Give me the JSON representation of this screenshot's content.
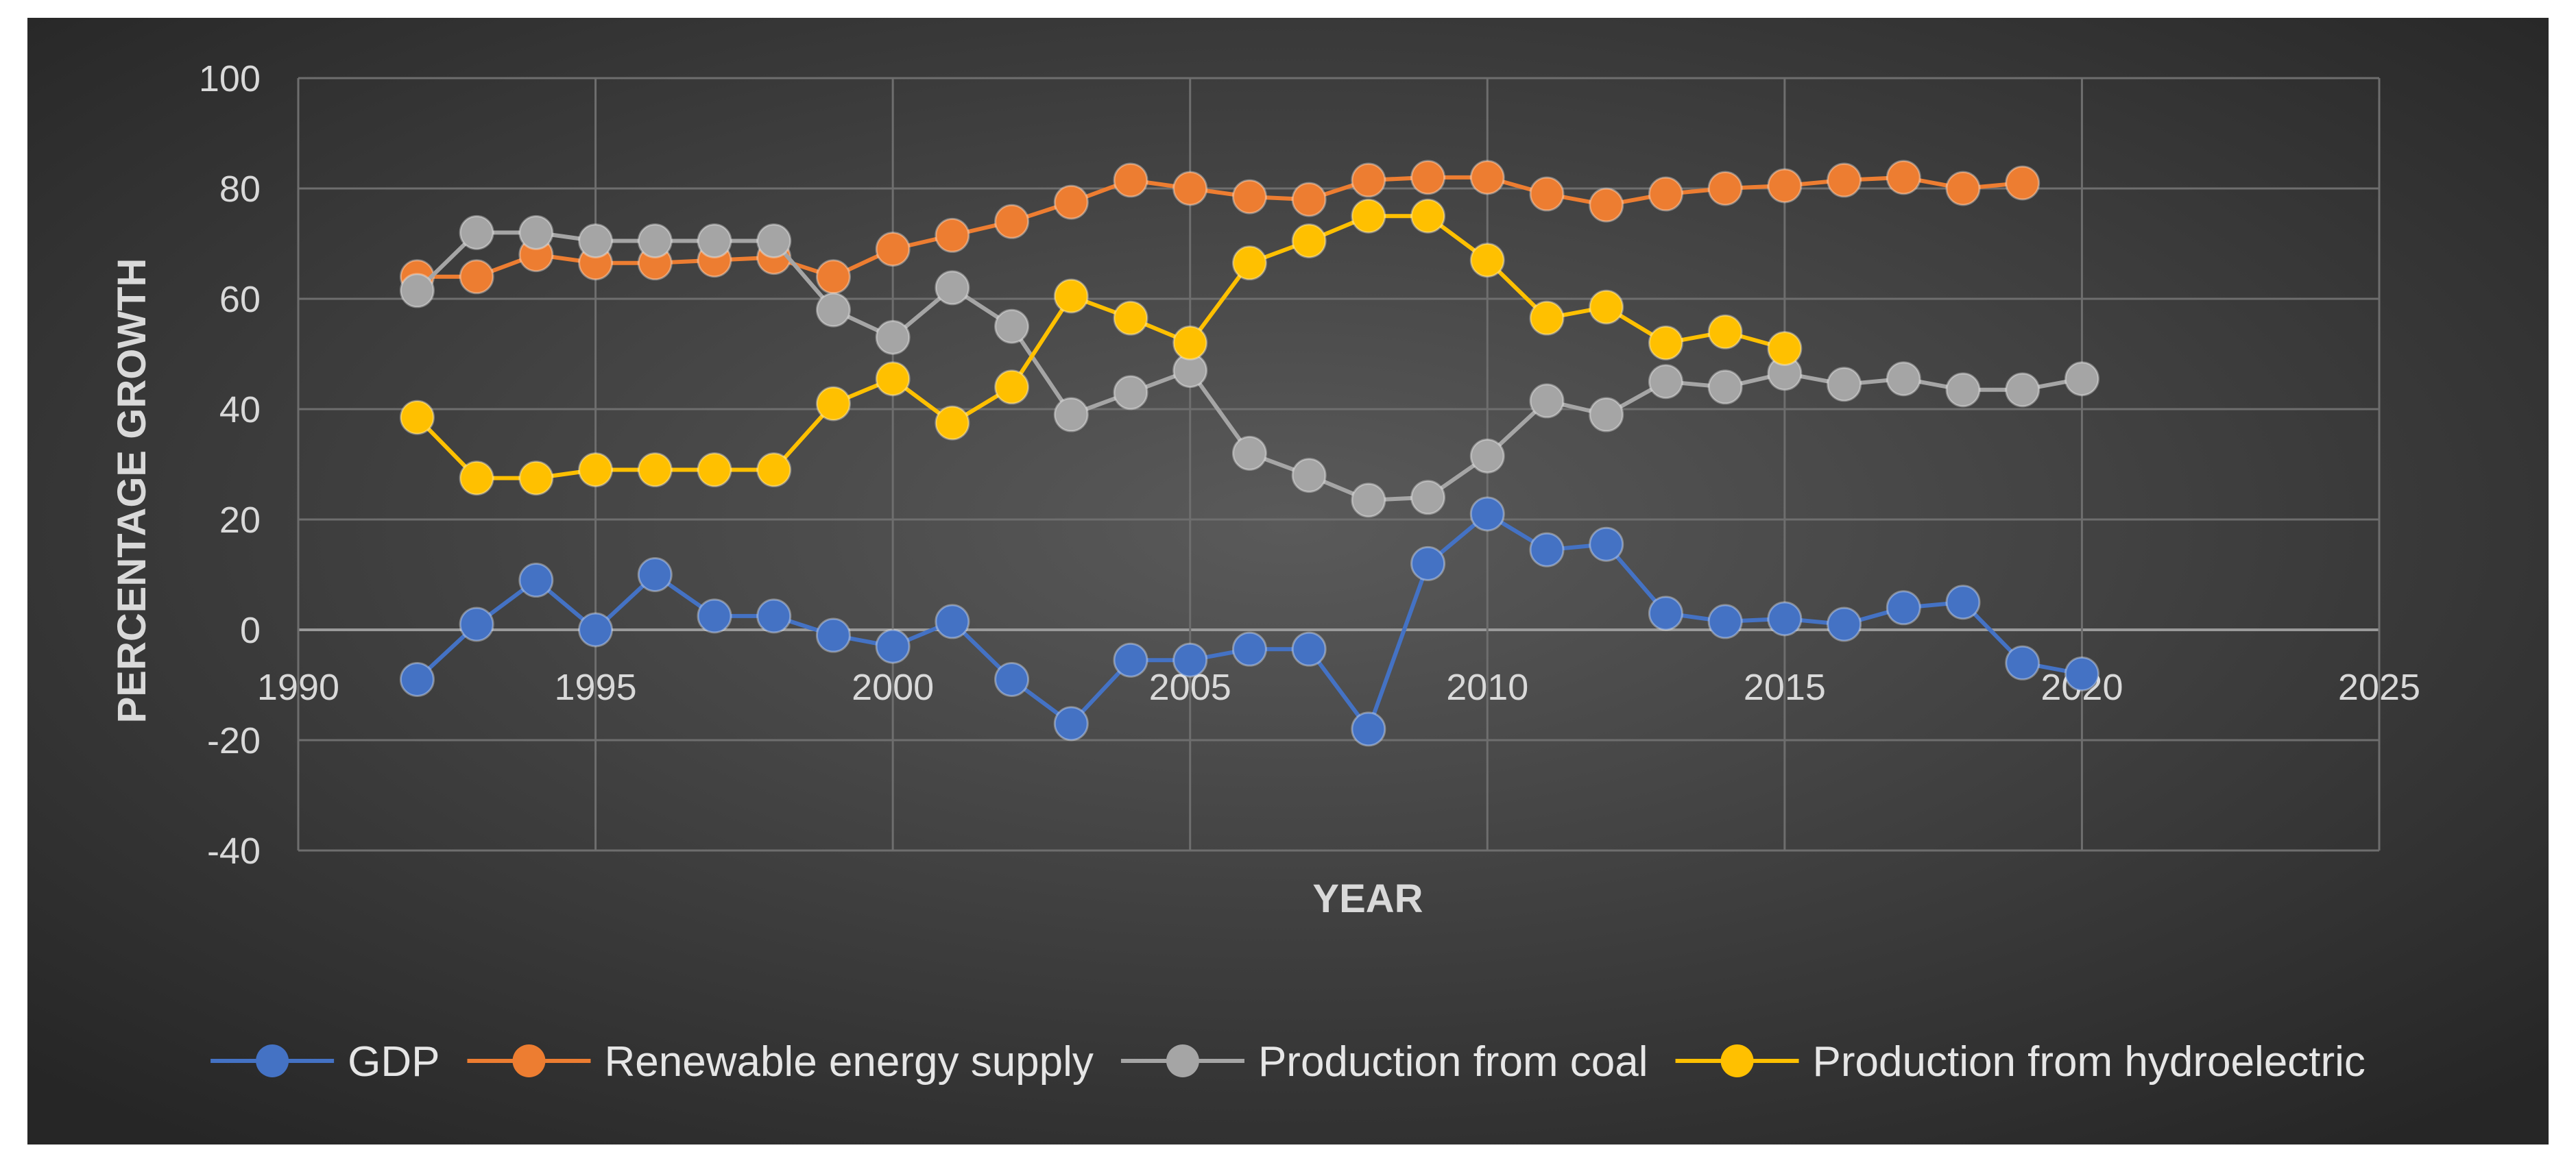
{
  "chart_data": {
    "type": "line",
    "title": "",
    "xlabel": "YEAR",
    "ylabel": "PERCENTAGE GROWTH",
    "xlim": [
      1990,
      2025
    ],
    "ylim": [
      -40,
      100
    ],
    "x_ticks": [
      1990,
      1995,
      2000,
      2005,
      2010,
      2015,
      2020,
      2025
    ],
    "y_ticks": [
      -40,
      -20,
      0,
      20,
      40,
      60,
      80,
      100
    ],
    "grid": true,
    "legend_position": "bottom",
    "background": "#3a3a3a",
    "series": [
      {
        "name": "GDP",
        "color": "#4472c4",
        "x": [
          1992,
          1993,
          1994,
          1995,
          1996,
          1997,
          1998,
          1999,
          2000,
          2001,
          2002,
          2003,
          2004,
          2005,
          2006,
          2007,
          2008,
          2009,
          2010,
          2011,
          2012,
          2013,
          2014,
          2015,
          2016,
          2017,
          2018,
          2019,
          2020
        ],
        "y": [
          -9,
          1,
          9,
          0,
          10,
          2.5,
          2.5,
          -1,
          -3,
          1.5,
          -9,
          -17,
          -5.5,
          -5.5,
          -3.5,
          -3.5,
          -18,
          12,
          21,
          14.5,
          15.5,
          3,
          1.5,
          2,
          1,
          4,
          5,
          -6,
          -8
        ]
      },
      {
        "name": "Renewable energy supply",
        "color": "#ed7d31",
        "x": [
          1992,
          1993,
          1994,
          1995,
          1996,
          1997,
          1998,
          1999,
          2000,
          2001,
          2002,
          2003,
          2004,
          2005,
          2006,
          2007,
          2008,
          2009,
          2010,
          2011,
          2012,
          2013,
          2014,
          2015,
          2016,
          2017,
          2018,
          2019
        ],
        "y": [
          64,
          64,
          68,
          66.5,
          66.5,
          67,
          67.5,
          64,
          69,
          71.5,
          74,
          77.5,
          81.5,
          80,
          78.5,
          78,
          81.5,
          82,
          82,
          79,
          77,
          79,
          80,
          80.5,
          81.5,
          82,
          80,
          81
        ]
      },
      {
        "name": "Production from coal",
        "color": "#a5a5a5",
        "x": [
          1992,
          1993,
          1994,
          1995,
          1996,
          1997,
          1998,
          1999,
          2000,
          2001,
          2002,
          2003,
          2004,
          2005,
          2006,
          2007,
          2008,
          2009,
          2010,
          2011,
          2012,
          2013,
          2014,
          2015,
          2016,
          2017,
          2018,
          2019,
          2020
        ],
        "y": [
          61.5,
          72,
          72,
          70.5,
          70.5,
          70.5,
          70.5,
          58,
          53,
          62,
          55,
          39,
          43,
          47,
          32,
          28,
          23.5,
          24,
          31.5,
          41.5,
          39,
          45,
          44,
          46.5,
          44.5,
          45.5,
          43.5,
          43.5,
          45.5
        ]
      },
      {
        "name": "Production from hydroelectric",
        "color": "#ffc000",
        "x": [
          1992,
          1993,
          1994,
          1995,
          1996,
          1997,
          1998,
          1999,
          2000,
          2001,
          2002,
          2003,
          2004,
          2005,
          2006,
          2007,
          2008,
          2009,
          2010,
          2011,
          2012,
          2013,
          2014,
          2015
        ],
        "y": [
          38.5,
          27.5,
          27.5,
          29,
          29,
          29,
          29,
          41,
          45.5,
          37.5,
          44,
          60.5,
          56.5,
          52,
          66.5,
          70.5,
          75,
          75,
          67,
          56.5,
          58.5,
          52,
          54,
          51
        ]
      }
    ]
  }
}
